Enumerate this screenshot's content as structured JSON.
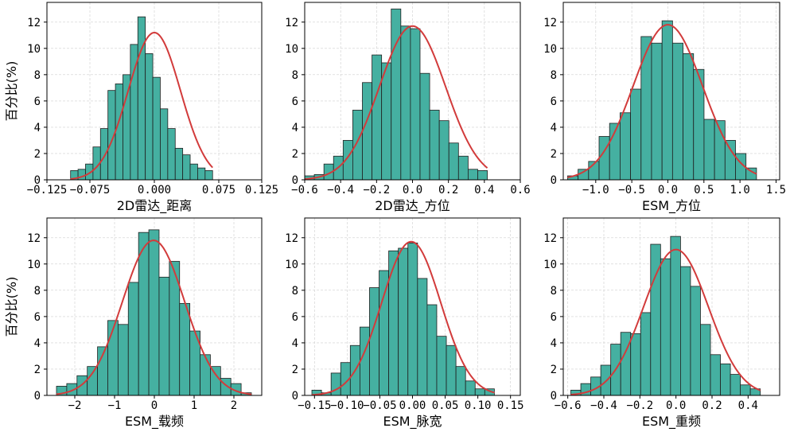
{
  "chart_data": [
    {
      "type": "bar",
      "xlabel": "2D雷达_距离",
      "ylabel": "百分比(%)",
      "xlim": [
        -0.125,
        0.125
      ],
      "ylim": [
        0,
        13.5
      ],
      "xticks": [
        -0.125,
        -0.075,
        0.0,
        0.075,
        0.125
      ],
      "xtick_labels": [
        "−0.125",
        "−0.075",
        "0.000",
        "0.075",
        "0.125"
      ],
      "yticks": [
        0,
        2,
        4,
        6,
        8,
        10,
        12
      ],
      "bin_start": -0.0975,
      "bin_width": 0.0087,
      "values": [
        0.7,
        0.8,
        1.2,
        2.5,
        3.9,
        6.8,
        7.3,
        8.0,
        10.3,
        12.4,
        9.6,
        7.8,
        5.4,
        3.9,
        2.4,
        1.9,
        1.2,
        0.9,
        0.7
      ],
      "normal_fit": {
        "mean": 0.0,
        "peak": 11.2,
        "sd": 0.0304
      },
      "grid": true
    },
    {
      "type": "bar",
      "xlabel": "2D雷达_方位",
      "ylabel": "",
      "xlim": [
        -0.6,
        0.6
      ],
      "ylim": [
        0,
        13.5
      ],
      "xticks": [
        -0.6,
        -0.4,
        -0.2,
        0.0,
        0.2,
        0.4,
        0.6
      ],
      "xtick_labels": [
        "−0.6",
        "−0.4",
        "−0.2",
        "0.0",
        "0.2",
        "0.4",
        "0.6"
      ],
      "yticks": [
        0,
        2,
        4,
        6,
        8,
        10,
        12
      ],
      "bin_start": -0.6,
      "bin_width": 0.0535,
      "values": [
        0.3,
        0.4,
        1.2,
        1.8,
        3.0,
        5.3,
        7.4,
        9.5,
        8.9,
        13.0,
        11.7,
        11.5,
        8.1,
        5.3,
        4.5,
        2.8,
        1.8,
        0.8,
        0.7
      ],
      "normal_fit": {
        "mean": 0.0,
        "peak": 11.7,
        "sd": 0.184
      },
      "grid": true
    },
    {
      "type": "bar",
      "xlabel": "ESM_方位",
      "ylabel": "",
      "xlim": [
        -1.45,
        1.55
      ],
      "ylim": [
        0,
        13.5
      ],
      "xticks": [
        -1.0,
        -0.5,
        0.0,
        0.5,
        1.0,
        1.5
      ],
      "xtick_labels": [
        "−1.0",
        "−0.5",
        "0.0",
        "0.5",
        "1.0",
        "1.5"
      ],
      "yticks": [
        0,
        2,
        4,
        6,
        8,
        10,
        12
      ],
      "bin_start": -1.39,
      "bin_width": 0.1455,
      "values": [
        0.3,
        0.8,
        1.4,
        3.3,
        4.3,
        5.1,
        6.9,
        10.9,
        10.4,
        12.1,
        10.4,
        9.6,
        8.4,
        4.6,
        4.5,
        3.0,
        2.0,
        0.9
      ],
      "normal_fit": {
        "mean": 0.0,
        "peak": 11.8,
        "sd": 0.48
      },
      "grid": true
    },
    {
      "type": "bar",
      "xlabel": "ESM_载频",
      "ylabel": "百分比(%)",
      "xlim": [
        -2.7,
        2.7
      ],
      "ylim": [
        0,
        13.5
      ],
      "xticks": [
        -2,
        -1,
        0,
        1,
        2
      ],
      "xtick_labels": [
        "−2",
        "−1",
        "0",
        "1",
        "2"
      ],
      "yticks": [
        0,
        2,
        4,
        6,
        8,
        10,
        12
      ],
      "bin_start": -2.46,
      "bin_width": 0.2579,
      "values": [
        0.7,
        0.9,
        1.5,
        2.2,
        3.7,
        5.7,
        5.4,
        8.6,
        12.4,
        12.6,
        9.0,
        10.2,
        7.0,
        4.9,
        3.1,
        2.2,
        1.3,
        0.9,
        0.2
      ],
      "normal_fit": {
        "mean": -0.02,
        "peak": 11.8,
        "sd": 0.78
      },
      "grid": true
    },
    {
      "type": "bar",
      "xlabel": "ESM_脉宽",
      "ylabel": "",
      "xlim": [
        -0.165,
        0.165
      ],
      "ylim": [
        0,
        13.5
      ],
      "xticks": [
        -0.15,
        -0.1,
        -0.05,
        0.0,
        0.05,
        0.1,
        0.15
      ],
      "xtick_labels": [
        "−0.15",
        "−0.10",
        "−0.05",
        "0.00",
        "0.05",
        "0.10",
        "0.15"
      ],
      "yticks": [
        0,
        2,
        4,
        6,
        8,
        10,
        12
      ],
      "bin_start": -0.154,
      "bin_width": 0.0147,
      "values": [
        0.4,
        0.2,
        1.7,
        2.5,
        3.8,
        5.2,
        8.2,
        9.5,
        11.0,
        11.2,
        11.6,
        8.9,
        6.9,
        4.5,
        3.8,
        2.2,
        1.1,
        0.5,
        0.5
      ],
      "normal_fit": {
        "mean": -0.002,
        "peak": 11.7,
        "sd": 0.045
      },
      "grid": true
    },
    {
      "type": "bar",
      "xlabel": "ESM_重频",
      "ylabel": "",
      "xlim": [
        -0.625,
        0.575
      ],
      "ylim": [
        0,
        13.5
      ],
      "xticks": [
        -0.6,
        -0.4,
        -0.2,
        0.0,
        0.2,
        0.4
      ],
      "xtick_labels": [
        "−0.6",
        "−0.4",
        "−0.2",
        "0.0",
        "0.2",
        "0.4"
      ],
      "yticks": [
        0,
        2,
        4,
        6,
        8,
        10,
        12
      ],
      "bin_start": -0.583,
      "bin_width": 0.0553,
      "values": [
        0.4,
        0.9,
        1.4,
        2.3,
        3.9,
        4.8,
        4.7,
        6.3,
        11.5,
        10.4,
        12.1,
        9.8,
        8.3,
        5.4,
        3.1,
        2.4,
        1.6,
        0.8,
        0.5
      ],
      "normal_fit": {
        "mean": 0.0,
        "peak": 11.1,
        "sd": 0.18
      },
      "grid": true
    }
  ]
}
